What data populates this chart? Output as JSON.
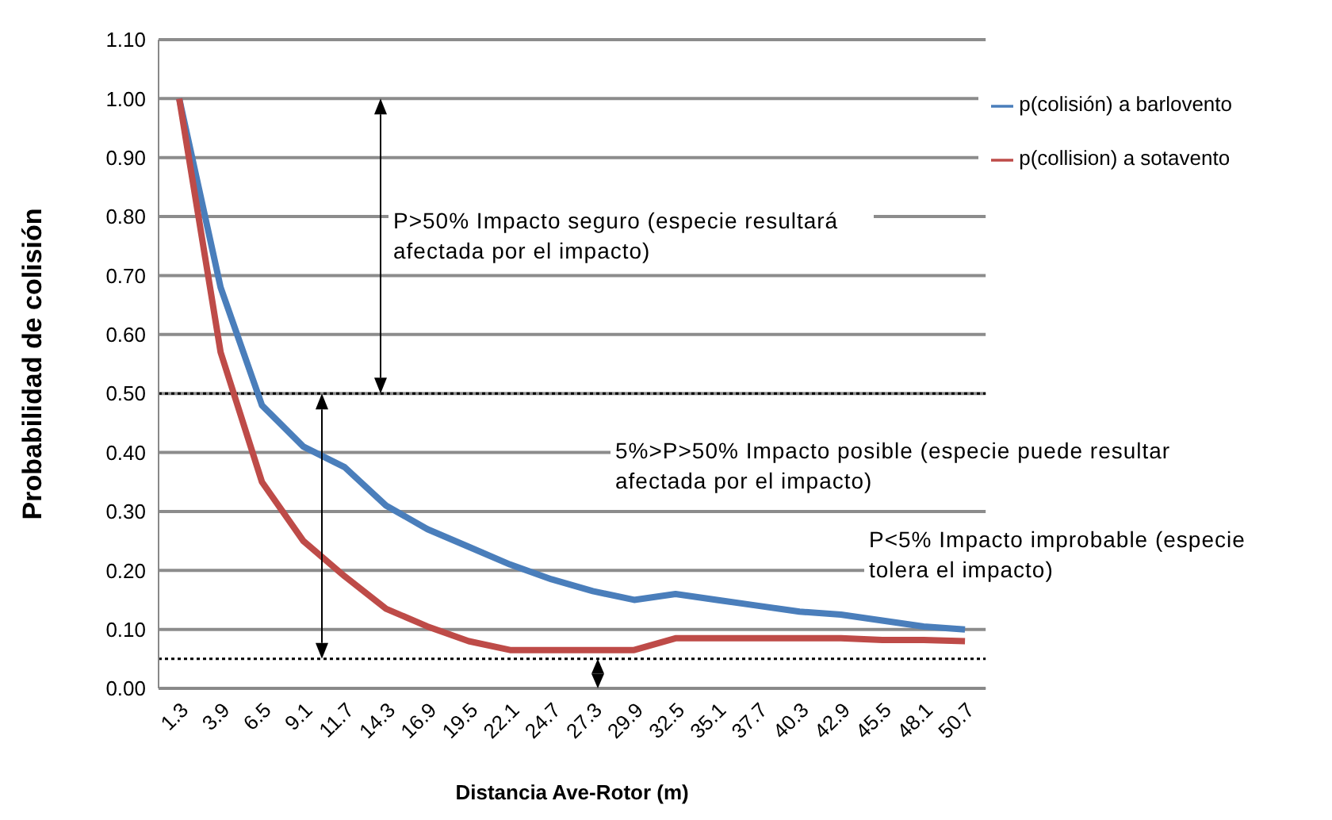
{
  "chart_data": {
    "type": "line",
    "xlabel": "Distancia Ave-Rotor (m)",
    "ylabel": "Probabilidad de colisión",
    "categories": [
      "1.3",
      "3.9",
      "6.5",
      "9.1",
      "11.7",
      "14.3",
      "16.9",
      "19.5",
      "22.1",
      "24.7",
      "27.3",
      "29.9",
      "32.5",
      "35.1",
      "37.7",
      "40.3",
      "42.9",
      "45.5",
      "48.1",
      "50.7"
    ],
    "series": [
      {
        "name": "p(colisión) a barlovento",
        "color": "#4a7ebb",
        "values": [
          1.0,
          0.68,
          0.48,
          0.41,
          0.375,
          0.31,
          0.27,
          0.24,
          0.21,
          0.185,
          0.165,
          0.15,
          0.16,
          0.15,
          0.14,
          0.13,
          0.125,
          0.115,
          0.105,
          0.1
        ]
      },
      {
        "name": "p(collision) a sotavento",
        "color": "#be4b48",
        "values": [
          1.0,
          0.57,
          0.35,
          0.25,
          0.19,
          0.135,
          0.105,
          0.08,
          0.065,
          0.065,
          0.065,
          0.065,
          0.085,
          0.085,
          0.085,
          0.085,
          0.085,
          0.082,
          0.082,
          0.08
        ]
      }
    ],
    "ylim": [
      0,
      1.1
    ],
    "yticks": [
      {
        "value": 0,
        "label": "0.00"
      },
      {
        "value": 0.1,
        "label": "0.10"
      },
      {
        "value": 0.2,
        "label": "0.20"
      },
      {
        "value": 0.3,
        "label": "0.30"
      },
      {
        "value": 0.4,
        "label": "0.40"
      },
      {
        "value": 0.5,
        "label": "0.50"
      },
      {
        "value": 0.6,
        "label": "0.60"
      },
      {
        "value": 0.7,
        "label": "0.70"
      },
      {
        "value": 0.8,
        "label": "0.80"
      },
      {
        "value": 0.9,
        "label": "0.90"
      },
      {
        "value": 1.0,
        "label": "1.00"
      },
      {
        "value": 1.1,
        "label": "1.10"
      }
    ],
    "ref_lines": [
      {
        "axis": "y",
        "value": 0.5,
        "color": "#000000",
        "line_style": "dotted"
      },
      {
        "axis": "y",
        "value": 0.05,
        "color": "#000000",
        "line_style": "dotted"
      }
    ],
    "annotations": [
      "P>50% Impacto seguro (especie resultará afectada por el impacto)",
      "5%>P>50% Impacto posible (especie puede resultar afectada por el impacto)",
      "P<5% Impacto improbable (especie tolera el impacto)"
    ],
    "grid": "y",
    "legend": "top right",
    "marker": "none",
    "line_style": "solid"
  }
}
